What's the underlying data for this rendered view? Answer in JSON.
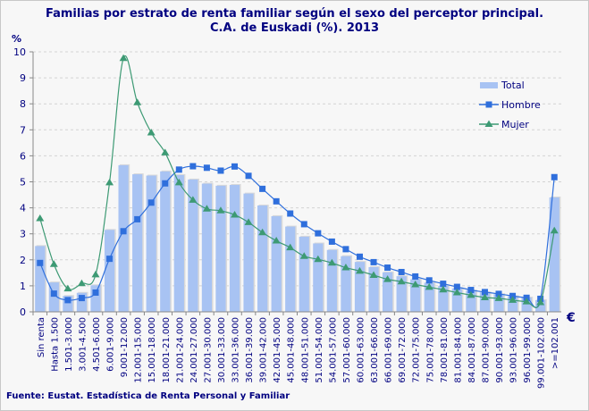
{
  "chart_data": {
    "type": "bar",
    "title": "Familias por estrato de renta familiar según el sexo del perceptor principal.",
    "subtitle": "C.A. de Euskadi (%). 2013",
    "ylabel": "%",
    "xlabel": "€",
    "ylim": [
      0,
      10
    ],
    "yticks": [
      "0",
      "1",
      "2",
      "3",
      "4",
      "5",
      "6",
      "7",
      "8",
      "9",
      "10"
    ],
    "grid": true,
    "legend_position": "top-right",
    "categories": [
      "Sin renta",
      "Hasta 1.500",
      "1.501-3.000",
      "3.001-4.500",
      "4.501-6.000",
      "6.001-9.000",
      "9.001-12.000",
      "12.001-15.000",
      "15.001-18.000",
      "18.001-21.000",
      "21.001-24.000",
      "24.001-27.000",
      "27.001-30.000",
      "30.001-33.000",
      "33.001-36.000",
      "36.001-39.000",
      "39.001-42.000",
      "42.001-45.000",
      "45.001-48.000",
      "48.001-51.000",
      "51.001-54.000",
      "54.001-57.000",
      "57.001-60.000",
      "60.001-63.000",
      "63.001-66.000",
      "66.001-69.000",
      "69.001-72.000",
      "72.001-75.000",
      "75.001-78.000",
      "78.001-81.000",
      "81.001-84.000",
      "84.001-87.000",
      "87.001-90.000",
      "90.001-93.000",
      "93.001-96.000",
      "96.001-99.000",
      "99.001-102.000",
      ">=102.001"
    ],
    "series": [
      {
        "name": "Total",
        "type": "bar",
        "color": "#a8c3f3",
        "values": [
          2.53,
          1.13,
          0.61,
          0.73,
          1.02,
          3.15,
          5.64,
          5.29,
          5.24,
          5.4,
          5.26,
          5.09,
          4.93,
          4.85,
          4.88,
          4.55,
          4.09,
          3.68,
          3.28,
          2.89,
          2.63,
          2.38,
          2.14,
          1.92,
          1.72,
          1.52,
          1.37,
          1.25,
          1.12,
          1.0,
          0.9,
          0.82,
          0.75,
          0.68,
          0.6,
          0.55,
          0.45,
          4.4
        ]
      },
      {
        "name": "Hombre",
        "type": "line",
        "marker": "square",
        "color": "#2f6fdc",
        "values": [
          1.88,
          0.7,
          0.45,
          0.53,
          0.74,
          2.04,
          3.1,
          3.56,
          4.2,
          4.94,
          5.47,
          5.6,
          5.54,
          5.43,
          5.59,
          5.23,
          4.73,
          4.25,
          3.78,
          3.37,
          3.02,
          2.7,
          2.41,
          2.12,
          1.91,
          1.7,
          1.53,
          1.36,
          1.21,
          1.08,
          0.96,
          0.84,
          0.76,
          0.69,
          0.61,
          0.54,
          0.5,
          5.18
        ]
      },
      {
        "name": "Mujer",
        "type": "line",
        "marker": "triangle",
        "color": "#3d9a74",
        "values": [
          3.59,
          1.83,
          0.89,
          1.09,
          1.43,
          4.97,
          9.75,
          8.05,
          6.89,
          6.12,
          4.97,
          4.3,
          3.96,
          3.89,
          3.73,
          3.44,
          3.05,
          2.73,
          2.47,
          2.14,
          2.02,
          1.88,
          1.7,
          1.57,
          1.41,
          1.25,
          1.16,
          1.05,
          0.95,
          0.85,
          0.74,
          0.64,
          0.55,
          0.52,
          0.45,
          0.39,
          0.36,
          3.12
        ]
      }
    ]
  },
  "source": "Fuente: Eustat. Estadística de Renta Personal y Familiar"
}
